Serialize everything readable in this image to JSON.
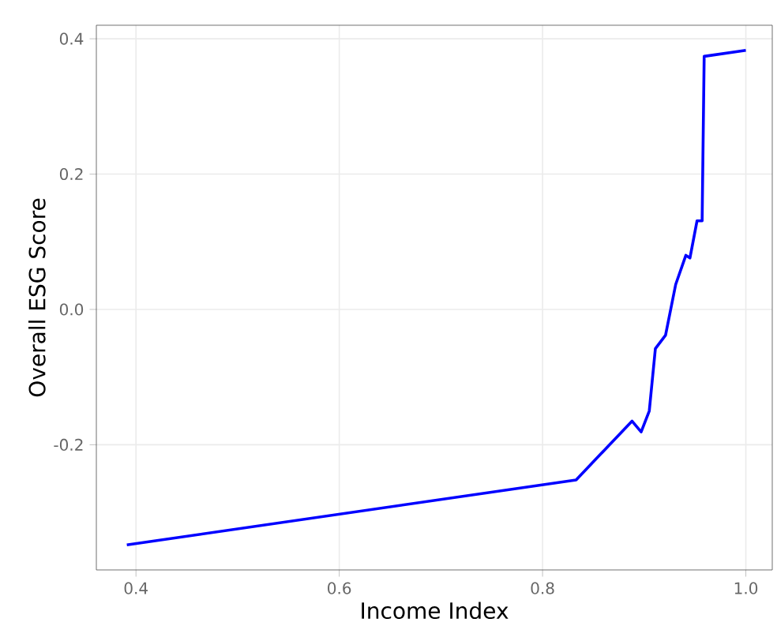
{
  "chart_data": {
    "type": "line",
    "xlabel": "Income Index",
    "ylabel": "Overall ESG Score",
    "series": [
      {
        "color": "#0000ff",
        "x": [
          0.391,
          0.833,
          0.888,
          0.897,
          0.905,
          0.911,
          0.921,
          0.931,
          0.941,
          0.945,
          0.952,
          0.957,
          0.959,
          1.0
        ],
        "values": [
          -0.348,
          -0.252,
          -0.165,
          -0.181,
          -0.15,
          -0.058,
          -0.038,
          0.037,
          0.08,
          0.076,
          0.131,
          0.131,
          0.374,
          0.383
        ]
      }
    ],
    "xlim": [
      0.361,
      1.026
    ],
    "ylim": [
      -0.385,
      0.42
    ],
    "xticks": [
      0.4,
      0.6,
      0.8,
      {
        "value": 1.0,
        "label": "1.0"
      }
    ],
    "yticks": [
      {
        "value": 0.4,
        "label": "0.4"
      },
      {
        "value": 0.2,
        "label": "0.2"
      },
      {
        "value": 0.0,
        "label": "0.0"
      },
      {
        "value": -0.2,
        "label": "-0.2"
      }
    ],
    "grid": true,
    "marker": "none",
    "line_style": "solid"
  }
}
